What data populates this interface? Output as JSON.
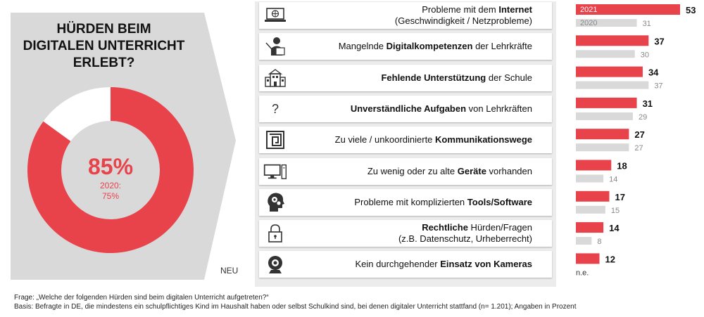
{
  "donut": {
    "title": "HÜRDEN BEIM\nDIGITALEN UNTERRICHT\nERLEBT?",
    "value_label": "85%",
    "prev_label": "2020:\n75%",
    "value": 85,
    "colors": {
      "main": "#e8424b",
      "rest": "#ffffff",
      "panel": "#d9d9d9"
    }
  },
  "neu_label": "NEU",
  "rows": [
    {
      "icon": "laptop-globe-icon",
      "pre": "Probleme mit dem ",
      "bold": "Internet",
      "post": "",
      "line2": "(Geschwindigkeit / Netzprobleme)"
    },
    {
      "icon": "teacher-icon",
      "pre": "Mangelnde ",
      "bold": "Digitalkompetenzen",
      "post": " der Lehrkräfte",
      "line2": ""
    },
    {
      "icon": "school-building-icon",
      "pre": "",
      "bold": "Fehlende Unterstützung",
      "post": " der Schule",
      "line2": ""
    },
    {
      "icon": "question-mark-icon",
      "pre": "",
      "bold": "Unverständliche Aufgaben",
      "post": " von Lehrkräften",
      "line2": ""
    },
    {
      "icon": "maze-icon",
      "pre": "Zu viele / unkoordinierte ",
      "bold": "Kommunikationswege",
      "post": "",
      "line2": ""
    },
    {
      "icon": "desktop-computer-icon",
      "pre": "Zu wenig oder zu alte ",
      "bold": "Geräte",
      "post": " vorhanden",
      "line2": ""
    },
    {
      "icon": "head-gears-icon",
      "pre": "Probleme mit komplizierten ",
      "bold": "Tools/Software",
      "post": "",
      "line2": ""
    },
    {
      "icon": "padlock-icon",
      "pre": "",
      "bold": "Rechtliche",
      "post": " Hürden/Fragen",
      "line2": "(z.B. Datenschutz, Urheberrecht)"
    },
    {
      "icon": "webcam-icon",
      "pre": "Kein durchgehender ",
      "bold": "Einsatz von Kameras",
      "post": "",
      "line2": ""
    }
  ],
  "chart_data": [
    {
      "type": "pie",
      "values": [
        85,
        15
      ],
      "center_label": "85%",
      "comparison": "2020: 75%",
      "title": "HÜRDEN BEIM DIGITALEN UNTERRICHT ERLEBT?"
    },
    {
      "type": "bar",
      "orientation": "horizontal",
      "categories": [
        "Probleme mit dem Internet (Geschwindigkeit / Netzprobleme)",
        "Mangelnde Digitalkompetenzen der Lehrkräfte",
        "Fehlende Unterstützung der Schule",
        "Unverständliche Aufgaben von Lehrkräften",
        "Zu viele / unkoordinierte Kommunikationswege",
        "Zu wenig oder zu alte Geräte vorhanden",
        "Probleme mit komplizierten Tools/Software",
        "Rechtliche Hürden/Fragen (z.B. Datenschutz, Urheberrecht)",
        "Kein durchgehender Einsatz von Kameras"
      ],
      "series": [
        {
          "name": "2021",
          "values": [
            53,
            37,
            34,
            31,
            27,
            18,
            17,
            14,
            12
          ],
          "color": "#e8424b"
        },
        {
          "name": "2020",
          "values": [
            31,
            30,
            37,
            29,
            27,
            14,
            15,
            8,
            null
          ],
          "labels": [
            "31",
            "30",
            "37",
            "29",
            "27",
            "14",
            "15",
            "8",
            "n.e."
          ],
          "color": "#d9d9d9"
        }
      ],
      "xlim": [
        0,
        53
      ]
    }
  ],
  "footer": {
    "line1": "Frage: „Welche der folgenden Hürden sind beim digitalen Unterricht aufgetreten?“",
    "line2": "Basis: Befragte in DE, die mindestens ein schulpflichtiges Kind im Haushalt haben oder selbst Schulkind sind, bei denen digitaler Unterricht stattfand (n= 1.201); Angaben in Prozent"
  }
}
